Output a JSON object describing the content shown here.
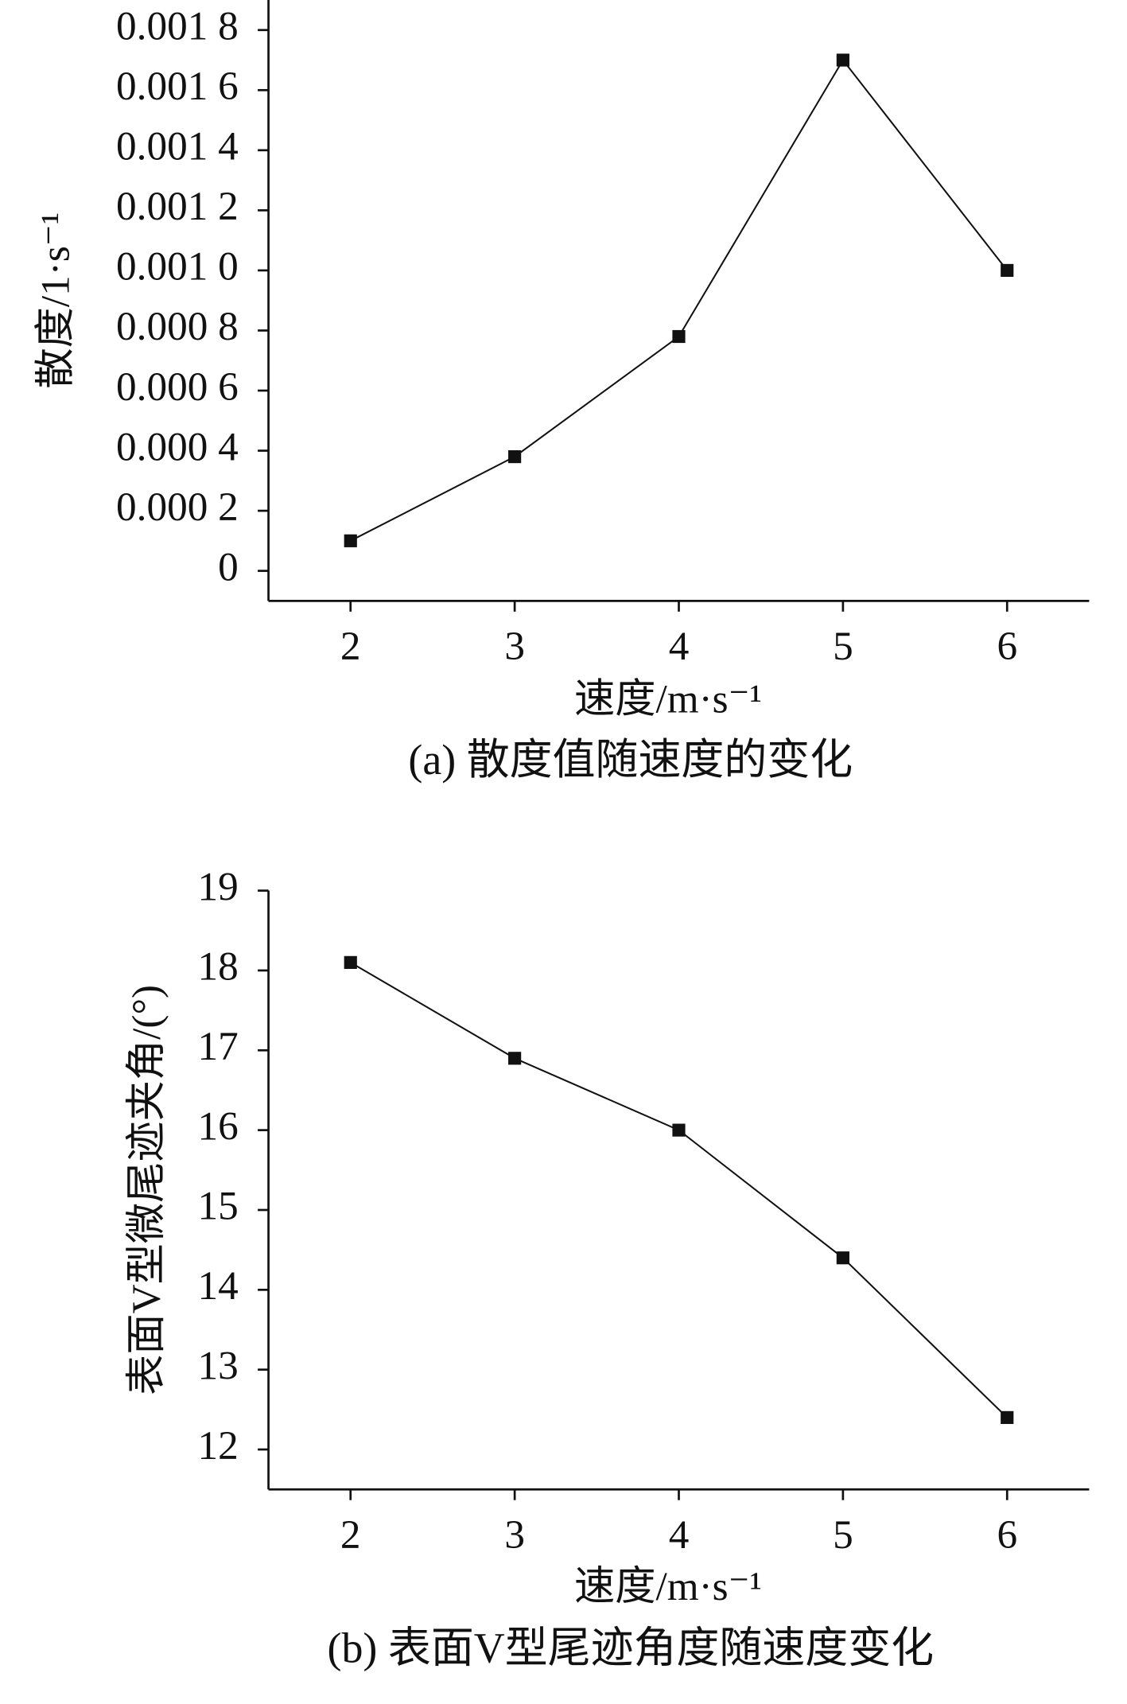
{
  "chart_data": [
    {
      "type": "line",
      "title": "(a) 散度值随速度的变化",
      "x_label": "速度/m·s⁻¹",
      "y_label": "散度/1·s⁻¹",
      "x": [
        2,
        3,
        4,
        5,
        6
      ],
      "values": [
        0.0001,
        0.00038,
        0.00078,
        0.0017,
        0.001
      ],
      "color": "#111111",
      "xlim": [
        1.5,
        6.5
      ],
      "xticks": [
        2,
        3,
        4,
        5,
        6
      ],
      "ylim": [
        -0.0001,
        0.0019
      ],
      "yticks": [
        0,
        {
          "value": 0.0002,
          "label": "0.000 2"
        },
        {
          "value": 0.0004,
          "label": "0.000 4"
        },
        {
          "value": 0.0006,
          "label": "0.000 6"
        },
        {
          "value": 0.0008,
          "label": "0.000 8"
        },
        {
          "value": 0.001,
          "label": "0.001 0"
        },
        {
          "value": 0.0012,
          "label": "0.001 2"
        },
        {
          "value": 0.0014,
          "label": "0.001 4"
        },
        {
          "value": 0.0016,
          "label": "0.001 6"
        },
        {
          "value": 0.0018,
          "label": "0.001 8"
        }
      ],
      "grid": false
    },
    {
      "type": "line",
      "title": "(b) 表面V型尾迹角度随速度变化",
      "x_label": "速度/m·s⁻¹",
      "y_label": "表面V型微尾迹夹角/(°)",
      "x": [
        2,
        3,
        4,
        5,
        6
      ],
      "values": [
        18.1,
        16.9,
        16.0,
        14.4,
        12.4
      ],
      "color": "#111111",
      "xlim": [
        1.5,
        6.5
      ],
      "xticks": [
        2,
        3,
        4,
        5,
        6
      ],
      "ylim": [
        11.5,
        19
      ],
      "yticks": [
        12,
        13,
        14,
        15,
        16,
        17,
        18,
        19
      ],
      "grid": false
    }
  ]
}
